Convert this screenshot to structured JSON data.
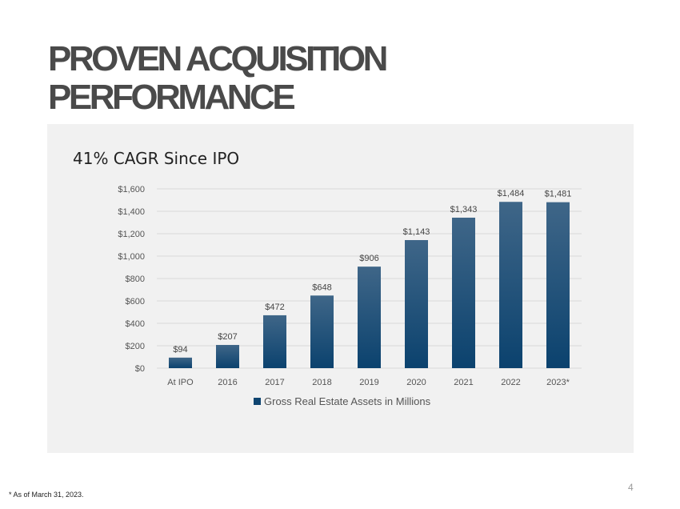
{
  "slide": {
    "title_line1": "PROVEN ACQUISITION",
    "title_line2": "PERFORMANCE",
    "subtitle": "41% CAGR Since IPO",
    "page_number": "4",
    "footnote": "* As of March 31, 2023."
  },
  "colors": {
    "bar_top": "#3f6688",
    "bar_bottom": "#0b426e",
    "panel_bg": "#f1f1f1",
    "grid": "#d9d9d9"
  },
  "chart_data": {
    "type": "bar",
    "title": "41% CAGR Since IPO",
    "categories": [
      "At IPO",
      "2016",
      "2017",
      "2018",
      "2019",
      "2020",
      "2021",
      "2022",
      "2023*"
    ],
    "series": [
      {
        "name": "Gross Real Estate Assets in Millions",
        "values": [
          94,
          207,
          472,
          648,
          906,
          1143,
          1343,
          1484,
          1481
        ],
        "labels": [
          "$94",
          "$207",
          "$472",
          "$648",
          "$906",
          "$1,143",
          "$1,343",
          "$1,484",
          "$1,481"
        ]
      }
    ],
    "y_ticks": [
      0,
      200,
      400,
      600,
      800,
      1000,
      1200,
      1400,
      1600
    ],
    "y_tick_labels": [
      "$0",
      "$200",
      "$400",
      "$600",
      "$800",
      "$1,000",
      "$1,200",
      "$1,400",
      "$1,600"
    ],
    "ylim": [
      0,
      1600
    ],
    "xlabel": "",
    "ylabel": "",
    "grid": true,
    "legend_position": "bottom"
  }
}
